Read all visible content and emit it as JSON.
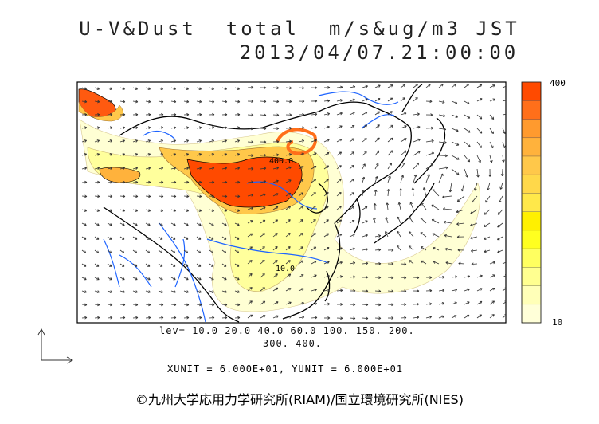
{
  "title": {
    "line1": "U-V&Dust  total  m/s&ug/m3 JST",
    "line2": "2013/04/07.21:00:00"
  },
  "levels": {
    "line1": "lev= 10.0 20.0 40.0 60.0 100. 150. 200.",
    "line2": "300. 400."
  },
  "units_text": "XUNIT = 6.000E+01, YUNIT = 6.000E+01",
  "colorbar": {
    "max_label": "400",
    "min_label": "10",
    "colors": [
      "#ff4a00",
      "#ff6f1a",
      "#ff9a2e",
      "#ffb23c",
      "#ffc84a",
      "#ffd84a",
      "#ffe84a",
      "#fff000",
      "#ffff20",
      "#ffff60",
      "#ffff90",
      "#ffffb8",
      "#ffffd8"
    ]
  },
  "contour_labels": [
    "400.0",
    "10.0"
  ],
  "credit": "©九州大学応用力学研究所(RIAM)/国立環境研究所(NIES)",
  "map_colors": {
    "coast": "#000000",
    "rivers": "#1e64ff",
    "dust_high": "#ff4a00",
    "dust_mid": "#ffb23c",
    "dust_low": "#ffff90",
    "dust_faint": "#ffffcc"
  }
}
